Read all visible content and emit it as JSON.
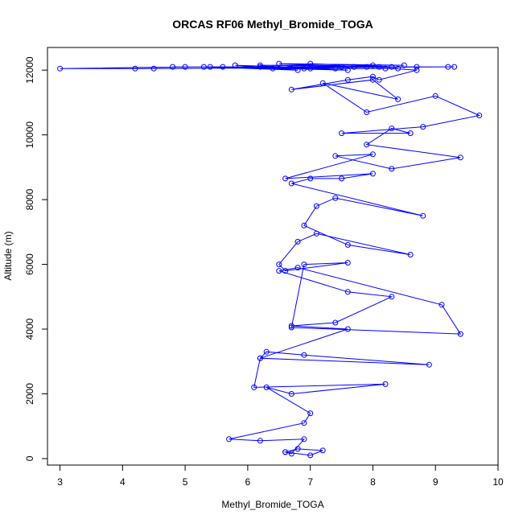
{
  "chart_data": {
    "type": "scatter",
    "title": "ORCAS RF06 Methyl_Bromide_TOGA",
    "xlabel": "Methyl_Bromide_TOGA",
    "ylabel": "Altitude (m)",
    "xlim": [
      2.8,
      10.0
    ],
    "ylim": [
      -200,
      12700
    ],
    "x_ticks": [
      3,
      4,
      5,
      6,
      7,
      8,
      9,
      10
    ],
    "y_ticks": [
      0,
      2000,
      4000,
      6000,
      8000,
      10000,
      12000
    ],
    "y_tick_labels": [
      "0",
      "2000",
      "4000",
      "6000",
      "8000",
      "10000",
      "12000"
    ],
    "grid": false,
    "legend": "none",
    "color": "#0000ff",
    "marker": "open-circle",
    "connected": true,
    "series": [
      {
        "x": [
          6.6,
          7.0,
          7.2,
          6.8,
          6.6,
          6.7,
          6.9,
          6.2,
          5.7,
          6.9,
          7.0,
          6.3,
          6.7,
          8.2,
          6.1,
          6.2,
          8.9,
          6.9,
          6.3,
          6.2,
          7.6,
          6.7,
          7.4,
          8.3,
          7.6,
          6.5,
          6.8,
          9.1,
          9.4,
          6.7,
          6.9,
          7.6,
          6.6,
          6.5,
          6.8,
          7.1,
          8.6,
          7.6,
          6.9,
          7.1,
          7.4,
          8.8,
          6.7,
          7.0,
          7.5,
          8.0,
          6.6,
          8.0,
          7.4,
          8.3,
          9.4,
          7.9,
          8.3,
          8.6,
          7.5,
          8.8,
          9.7,
          9.0,
          7.9,
          7.2,
          8.4,
          8.0,
          6.7,
          7.6,
          8.0,
          8.1,
          8.7,
          7.9,
          5.0,
          3.0,
          4.2,
          9.2,
          4.5,
          8.7,
          4.8,
          9.3,
          5.6,
          8.1,
          6.2,
          8.5,
          6.5,
          8.4,
          7.0,
          8.0,
          7.5,
          7.7,
          5.3,
          6.8,
          5.8,
          7.4,
          6.4,
          7.0,
          8.3,
          6.2,
          7.6,
          5.4,
          6.9,
          8.2
        ],
        "y": [
          200,
          100,
          250,
          300,
          200,
          150,
          600,
          550,
          600,
          1100,
          1400,
          2200,
          2000,
          2300,
          2200,
          3100,
          2900,
          3200,
          3300,
          3100,
          4000,
          4100,
          4200,
          5000,
          5150,
          5800,
          5900,
          4750,
          3850,
          4050,
          6000,
          6050,
          5800,
          6000,
          6700,
          6950,
          6300,
          6600,
          7200,
          7800,
          8050,
          7500,
          8500,
          8650,
          8650,
          8800,
          8650,
          9400,
          9350,
          8950,
          9300,
          9700,
          10200,
          10050,
          10050,
          10250,
          10600,
          11200,
          10700,
          11600,
          11100,
          11700,
          11400,
          11700,
          11800,
          11700,
          12000,
          12100,
          12100,
          12050,
          12050,
          12100,
          12050,
          12100,
          12100,
          12100,
          12100,
          12100,
          12150,
          12150,
          12200,
          12050,
          12050,
          12150,
          12100,
          12100,
          12100,
          12000,
          12150,
          12050,
          12050,
          12200,
          12100,
          12100,
          12000,
          12100,
          12050,
          12050
        ]
      }
    ]
  }
}
